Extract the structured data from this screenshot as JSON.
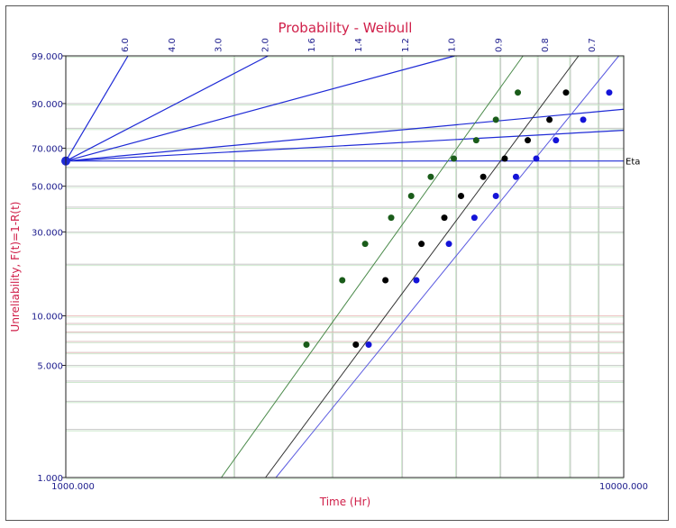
{
  "chart_data": {
    "type": "scatter",
    "title": "Probability - Weibull",
    "xlabel": "Time (Hr)",
    "ylabel": "Unreliability, F(t)=1-R(t)",
    "x_scale": "log",
    "y_scale": "weibull",
    "xlim": [
      1000,
      10000
    ],
    "ylim": [
      1,
      99
    ],
    "x_tick_labels": [
      {
        "value": 1000,
        "label": "1000.000"
      },
      {
        "value": 10000,
        "label": "10000.000"
      }
    ],
    "y_tick_labels": [
      {
        "value": 1,
        "label": "1.000"
      },
      {
        "value": 5,
        "label": "5.000"
      },
      {
        "value": 10,
        "label": "10.000"
      },
      {
        "value": 30,
        "label": "30.000"
      },
      {
        "value": 50,
        "label": "50.000"
      },
      {
        "value": 70,
        "label": "70.000"
      },
      {
        "value": 90,
        "label": "90.000"
      },
      {
        "value": 99,
        "label": "99.000"
      }
    ],
    "colors": {
      "title": "#d0204a",
      "axis_label": "#d0204a",
      "ticks": "#1a1a8c",
      "beta_lines": "#1f2bd6",
      "series_green": "#1a5c1a",
      "series_black": "#000000",
      "series_blue": "#1414d8",
      "fit_green": "#4a8a4a",
      "fit_black": "#333333",
      "fit_blue": "#5a5ae0",
      "grid_major": "#bfbfbf",
      "grid_minor": "#c8e6c8",
      "grid_red": "#e8b0b0"
    },
    "eta_label": "Eta",
    "beta_scale": {
      "labels": [
        "6.0",
        "4.0",
        "3.0",
        "2.0",
        "1.6",
        "1.4",
        "1.2",
        "1.0",
        "0.9",
        "0.8",
        "0.7"
      ],
      "drawn_lines": [
        "6.0",
        "2.0",
        "1.0"
      ]
    },
    "series": [
      {
        "color": "green",
        "x": [
          2700,
          3130,
          3440,
          3830,
          4160,
          4510,
          4960,
          5440,
          5900,
          6460
        ],
        "y": [
          6.7,
          16.2,
          25.9,
          35.5,
          45.2,
          54.8,
          64.5,
          74.1,
          83.8,
          93.3
        ]
      },
      {
        "color": "black",
        "x": [
          3310,
          3740,
          4340,
          4770,
          5110,
          5600,
          6120,
          6730,
          7360,
          7880
        ],
        "y": [
          6.7,
          16.2,
          25.9,
          35.5,
          45.2,
          54.8,
          64.5,
          74.1,
          83.8,
          93.3
        ]
      },
      {
        "color": "blue",
        "x": [
          3490,
          4250,
          4860,
          5400,
          5900,
          6410,
          6970,
          7560,
          8460,
          9420
        ],
        "y": [
          6.7,
          16.2,
          25.9,
          35.5,
          45.2,
          54.8,
          64.5,
          74.1,
          83.8,
          93.3
        ]
      }
    ],
    "fit_lines": [
      {
        "color": "green",
        "points": [
          [
            1900,
            1
          ],
          [
            6600,
            99
          ]
        ]
      },
      {
        "color": "black",
        "points": [
          [
            2280,
            1
          ],
          [
            8300,
            99
          ]
        ]
      },
      {
        "color": "blue",
        "points": [
          [
            2380,
            1
          ],
          [
            9800,
            99
          ]
        ]
      }
    ],
    "eta_line_y": 63.2
  }
}
